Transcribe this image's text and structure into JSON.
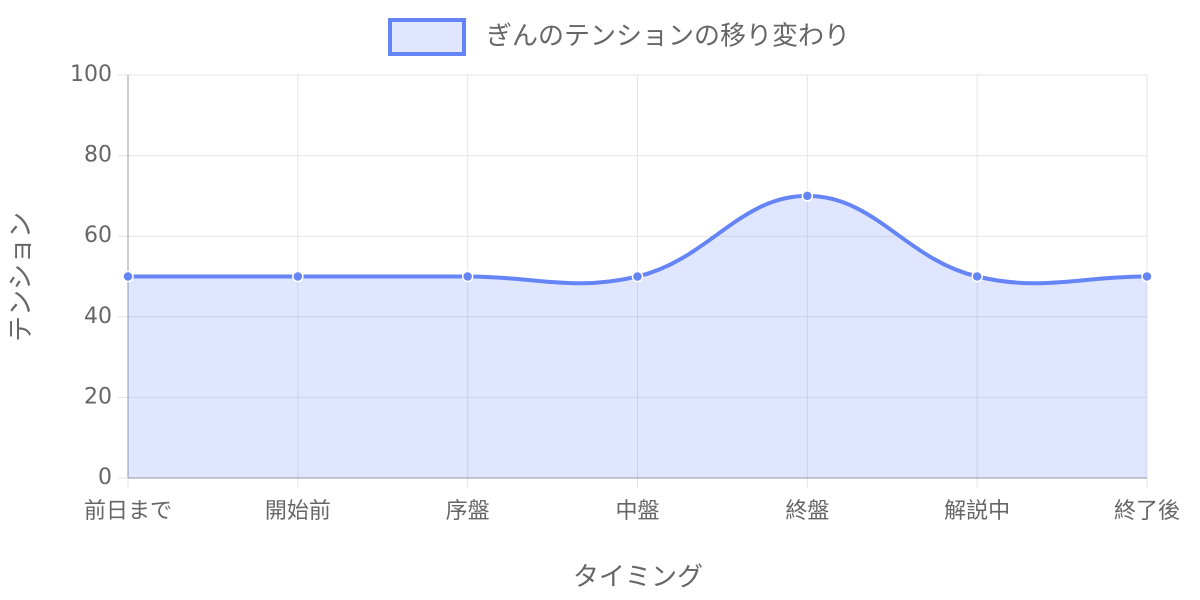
{
  "chart_data": {
    "type": "line",
    "categories": [
      "前日まで",
      "開始前",
      "序盤",
      "中盤",
      "終盤",
      "解説中",
      "終了後"
    ],
    "series": [
      {
        "name": "ぎんのテンションの移り変わり",
        "color": "#6584f5",
        "fill_color": "rgba(101,132,245,0.2)",
        "values": [
          50,
          50,
          50,
          50,
          70,
          50,
          50
        ]
      }
    ],
    "x_label": "タイミング",
    "y_label": "テンション",
    "ylim": [
      0,
      100
    ],
    "yticks": [
      0,
      20,
      40,
      60,
      80,
      100
    ],
    "grid": true,
    "legend": "top"
  }
}
